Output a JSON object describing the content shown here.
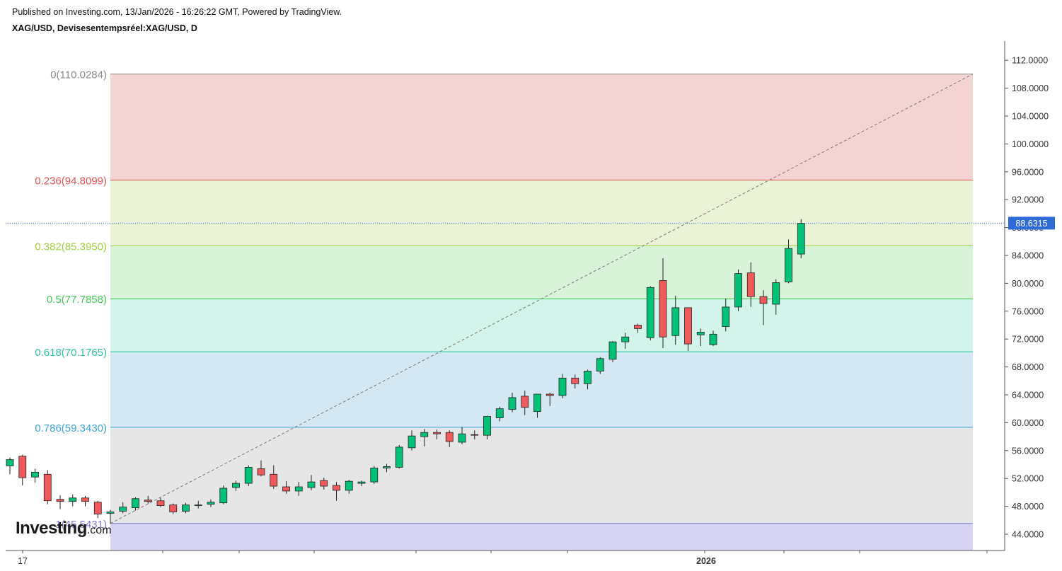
{
  "header": {
    "published": "Published on Investing.com, 13/Jan/2026 - 16:26:22 GMT, Powered by TradingView.",
    "symbol": "XAG/USD, Devisesentempsréel:XAG/USD, D"
  },
  "logo": {
    "main": "Investing",
    "suffix": ".com"
  },
  "colors": {
    "up": "#00c176",
    "down": "#f05a5a",
    "wick": "#222222",
    "price_line": "#3c6ff0",
    "price_badge": "#2e6bd8",
    "trend_line": "#777777",
    "axis": "#555555"
  },
  "chart_data": {
    "type": "candlestick",
    "symbol": "XAG/USD",
    "timeframe": "D",
    "last_price": 88.6315,
    "last_price_label": "88.6315",
    "ylim": [
      42.0,
      114.0
    ],
    "y_ticks": [
      "44.0000",
      "48.0000",
      "52.0000",
      "56.0000",
      "60.0000",
      "64.0000",
      "68.0000",
      "72.0000",
      "76.0000",
      "80.0000",
      "84.0000",
      "88.0000",
      "92.0000",
      "96.0000",
      "100.0000",
      "104.0000",
      "108.0000",
      "112.0000"
    ],
    "x_labels": [
      "17",
      "2026"
    ],
    "fibonacci": {
      "trend_from": 45.5431,
      "trend_to": 110.0284,
      "levels": [
        {
          "ratio": 0,
          "price": 110.0284,
          "label": "0(110.0284)",
          "color": "#8c8c8c",
          "fill": "#f4d4d2"
        },
        {
          "ratio": 0.236,
          "price": 94.8099,
          "label": "0.236(94.8099)",
          "color": "#e05050",
          "fill": "#eaf3d6"
        },
        {
          "ratio": 0.382,
          "price": 85.395,
          "label": "0.382(85.3950)",
          "color": "#9fce3c",
          "fill": "#d8f3d7"
        },
        {
          "ratio": 0.5,
          "price": 77.7858,
          "label": "0.5(77.7858)",
          "color": "#3ccc52",
          "fill": "#d3f4ea"
        },
        {
          "ratio": 0.618,
          "price": 70.1765,
          "label": "0.618(70.1765)",
          "color": "#2ec4a0",
          "fill": "#d4e8f4"
        },
        {
          "ratio": 0.786,
          "price": 59.343,
          "label": "0.786(59.3430)",
          "color": "#3ba3d8",
          "fill": "#e6e6e6"
        },
        {
          "ratio": 1,
          "price": 45.5431,
          "label": "1(45.5431)",
          "color": "#7a7ad0",
          "fill": "#d6d4f2"
        }
      ]
    },
    "candles": [
      [
        53.8,
        55.0,
        52.6,
        54.7
      ],
      [
        55.2,
        55.4,
        51.0,
        52.1
      ],
      [
        52.2,
        53.4,
        51.4,
        52.9
      ],
      [
        52.6,
        53.2,
        48.3,
        48.8
      ],
      [
        49.0,
        49.6,
        47.6,
        48.7
      ],
      [
        48.7,
        49.7,
        48.0,
        49.2
      ],
      [
        49.2,
        49.5,
        48.0,
        48.7
      ],
      [
        48.6,
        48.8,
        46.3,
        46.9
      ],
      [
        47.0,
        47.5,
        45.5,
        47.2
      ],
      [
        47.3,
        48.6,
        47.0,
        47.9
      ],
      [
        47.8,
        49.3,
        47.4,
        49.1
      ],
      [
        48.9,
        49.5,
        48.4,
        48.7
      ],
      [
        48.8,
        49.2,
        47.9,
        48.1
      ],
      [
        48.2,
        48.4,
        46.9,
        47.2
      ],
      [
        47.3,
        48.5,
        47.0,
        48.2
      ],
      [
        48.1,
        48.8,
        47.7,
        48.2
      ],
      [
        48.3,
        49.0,
        47.9,
        48.6
      ],
      [
        48.5,
        51.0,
        48.3,
        50.6
      ],
      [
        50.7,
        51.7,
        50.2,
        51.3
      ],
      [
        51.3,
        53.9,
        50.9,
        53.6
      ],
      [
        53.4,
        54.6,
        52.3,
        52.5
      ],
      [
        52.6,
        53.9,
        50.5,
        50.9
      ],
      [
        50.8,
        51.6,
        49.8,
        50.2
      ],
      [
        50.2,
        51.5,
        49.5,
        50.8
      ],
      [
        50.7,
        52.5,
        50.3,
        51.5
      ],
      [
        51.7,
        52.1,
        50.4,
        50.9
      ],
      [
        51.0,
        51.5,
        48.8,
        50.3
      ],
      [
        50.3,
        51.8,
        49.8,
        51.6
      ],
      [
        51.3,
        51.7,
        50.9,
        51.5
      ],
      [
        51.5,
        53.8,
        51.2,
        53.5
      ],
      [
        53.5,
        54.1,
        52.9,
        53.7
      ],
      [
        53.6,
        56.8,
        53.4,
        56.5
      ],
      [
        56.4,
        58.9,
        56.0,
        58.1
      ],
      [
        58.0,
        59.1,
        56.6,
        58.6
      ],
      [
        58.6,
        59.0,
        57.6,
        58.4
      ],
      [
        58.6,
        58.9,
        56.5,
        57.3
      ],
      [
        57.2,
        59.4,
        56.9,
        58.4
      ],
      [
        58.3,
        58.9,
        57.6,
        58.2
      ],
      [
        58.2,
        61.0,
        57.6,
        60.9
      ],
      [
        60.7,
        62.3,
        60.2,
        62.0
      ],
      [
        61.9,
        64.3,
        61.5,
        63.6
      ],
      [
        63.8,
        64.6,
        61.1,
        62.2
      ],
      [
        61.6,
        64.1,
        60.7,
        64.1
      ],
      [
        64.1,
        64.3,
        62.4,
        63.9
      ],
      [
        63.9,
        67.0,
        63.5,
        66.4
      ],
      [
        66.4,
        66.9,
        64.9,
        65.6
      ],
      [
        65.6,
        67.6,
        64.8,
        67.4
      ],
      [
        67.4,
        69.4,
        67.0,
        69.2
      ],
      [
        69.1,
        71.7,
        68.7,
        71.6
      ],
      [
        71.6,
        72.9,
        70.6,
        72.3
      ],
      [
        74.0,
        74.2,
        72.9,
        73.5
      ],
      [
        72.2,
        79.6,
        71.8,
        79.4
      ],
      [
        80.4,
        83.6,
        70.7,
        72.3
      ],
      [
        72.5,
        78.2,
        71.2,
        76.5
      ],
      [
        76.5,
        76.5,
        70.3,
        71.3
      ],
      [
        72.6,
        73.5,
        71.0,
        73.0
      ],
      [
        71.2,
        73.2,
        71.0,
        72.7
      ],
      [
        73.8,
        77.8,
        73.1,
        76.6
      ],
      [
        76.6,
        82.0,
        76.0,
        81.4
      ],
      [
        81.5,
        83.0,
        76.6,
        78.1
      ],
      [
        78.1,
        79.0,
        74.0,
        77.1
      ],
      [
        77.0,
        80.6,
        75.5,
        80.1
      ],
      [
        80.2,
        86.3,
        80.0,
        85.0
      ],
      [
        84.2,
        89.2,
        83.6,
        88.6
      ]
    ]
  }
}
